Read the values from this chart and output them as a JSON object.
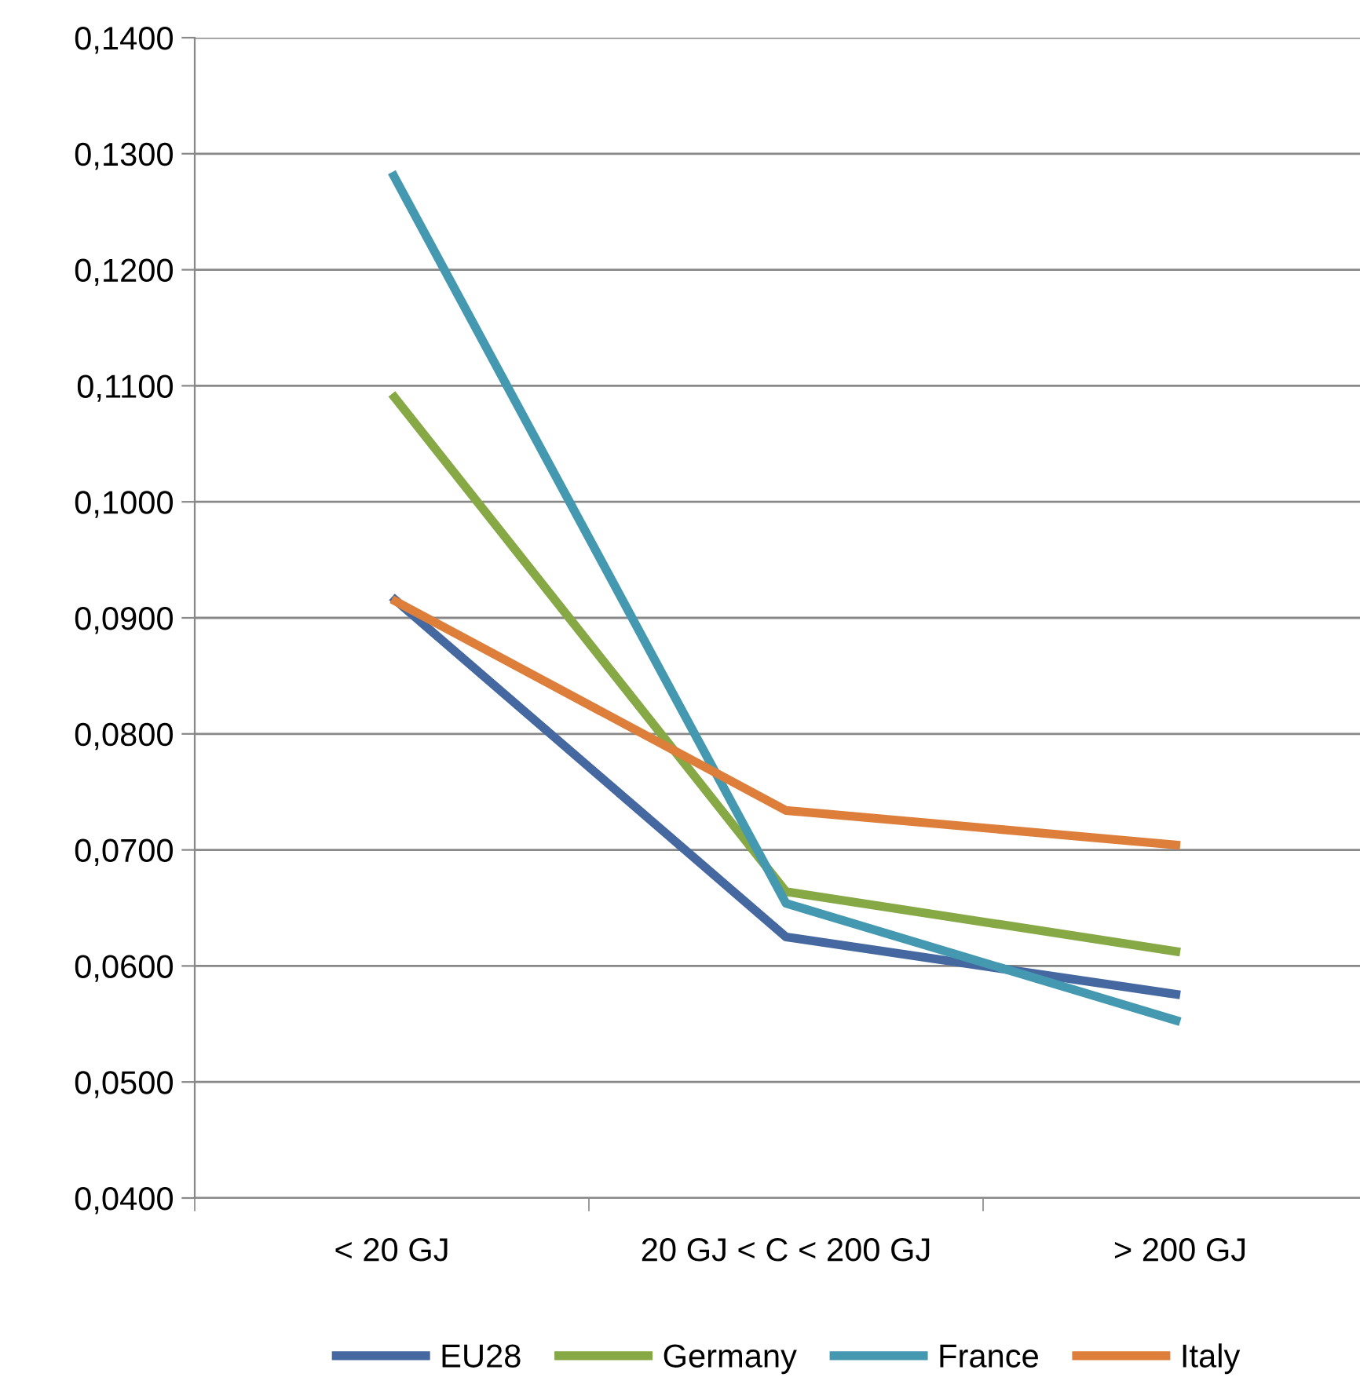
{
  "chart_data": {
    "type": "line",
    "categories": [
      "< 20 GJ",
      "20 GJ < C < 200 GJ",
      "> 200 GJ"
    ],
    "series": [
      {
        "name": "EU28",
        "color": "#44689f",
        "values": [
          0.0918,
          0.0625,
          0.0575
        ]
      },
      {
        "name": "Germany",
        "color": "#86a845",
        "values": [
          0.1093,
          0.0664,
          0.0612
        ]
      },
      {
        "name": "France",
        "color": "#4499b0",
        "values": [
          0.1284,
          0.0654,
          0.0552
        ]
      },
      {
        "name": "Italy",
        "color": "#dd7f3a",
        "values": [
          0.0916,
          0.0734,
          0.0704
        ]
      }
    ],
    "ylim": [
      0.04,
      0.14
    ],
    "yticks": [
      {
        "value": 0.04,
        "label": "0,0400"
      },
      {
        "value": 0.05,
        "label": "0,0500"
      },
      {
        "value": 0.06,
        "label": "0,0600"
      },
      {
        "value": 0.07,
        "label": "0,0700"
      },
      {
        "value": 0.08,
        "label": "0,0800"
      },
      {
        "value": 0.09,
        "label": "0,0900"
      },
      {
        "value": 0.1,
        "label": "0,1000"
      },
      {
        "value": 0.11,
        "label": "0,1100"
      },
      {
        "value": 0.12,
        "label": "0,1200"
      },
      {
        "value": 0.13,
        "label": "0,1300"
      },
      {
        "value": 0.14,
        "label": "0,1400"
      }
    ],
    "grid": "y",
    "legend": "bottom",
    "marker": "none",
    "line_style": "solid"
  }
}
